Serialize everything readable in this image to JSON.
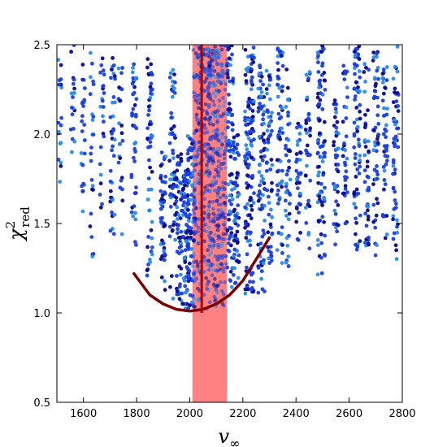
{
  "chart_data": {
    "type": "scatter",
    "title": "",
    "xlabel": "v",
    "xlabel_subscript": "∞",
    "ylabel": "χ",
    "ylabel_superscript": "2",
    "ylabel_subscript": "red",
    "xlim": [
      1500,
      2800
    ],
    "ylim": [
      0.5,
      2.5
    ],
    "xticks": [
      1600,
      1800,
      2000,
      2200,
      2400,
      2600,
      2800
    ],
    "yticks": [
      0.5,
      1.0,
      1.5,
      2.0,
      2.5
    ],
    "xtick_labels": [
      "1600",
      "1800",
      "2000",
      "2200",
      "2400",
      "2600",
      "2800"
    ],
    "ytick_labels": [
      "0.5",
      "1.0",
      "1.5",
      "2.0",
      "2.5"
    ],
    "grid": false,
    "legend": "none",
    "colors": {
      "point_dark": "#0a0a8c",
      "point_mid": "#1a3fe0",
      "point_light": "#2b8ae8",
      "band": "#ff7a7a",
      "curve": "#7a0000",
      "best_fit_line": "#b30000"
    },
    "highlight_band": {
      "x_range": [
        2010,
        2140
      ]
    },
    "best_fit_line": {
      "x": 2045,
      "y_range": [
        1.0,
        2.5
      ]
    },
    "fit_curve": {
      "x": [
        1790,
        1850,
        1900,
        1950,
        2000,
        2050,
        2100,
        2150,
        2200,
        2250,
        2300
      ],
      "y": [
        1.22,
        1.1,
        1.05,
        1.02,
        1.01,
        1.02,
        1.05,
        1.1,
        1.18,
        1.3,
        1.42
      ]
    },
    "columns": [
      {
        "x": 1510,
        "ymin": 1.6,
        "ymax": 2.5,
        "weight": 0.3
      },
      {
        "x": 1560,
        "ymin": 1.75,
        "ymax": 2.5,
        "weight": 0.3
      },
      {
        "x": 1600,
        "ymin": 1.55,
        "ymax": 2.4,
        "weight": 0.4
      },
      {
        "x": 1630,
        "ymin": 1.25,
        "ymax": 2.5,
        "weight": 0.4
      },
      {
        "x": 1670,
        "ymin": 1.5,
        "ymax": 2.5,
        "weight": 0.4
      },
      {
        "x": 1710,
        "ymin": 1.4,
        "ymax": 2.5,
        "weight": 0.6
      },
      {
        "x": 1740,
        "ymin": 1.4,
        "ymax": 2.4,
        "weight": 0.4
      },
      {
        "x": 1790,
        "ymin": 1.35,
        "ymax": 2.4,
        "weight": 0.7
      },
      {
        "x": 1850,
        "ymin": 1.2,
        "ymax": 2.5,
        "weight": 0.9
      },
      {
        "x": 1900,
        "ymin": 1.1,
        "ymax": 1.9,
        "weight": 0.8
      },
      {
        "x": 1935,
        "ymin": 1.05,
        "ymax": 2.4,
        "weight": 1.0
      },
      {
        "x": 1960,
        "ymin": 1.05,
        "ymax": 1.9,
        "weight": 1.0
      },
      {
        "x": 1985,
        "ymin": 1.02,
        "ymax": 1.8,
        "weight": 1.2
      },
      {
        "x": 2005,
        "ymin": 1.02,
        "ymax": 2.0,
        "weight": 1.5
      },
      {
        "x": 2030,
        "ymin": 1.02,
        "ymax": 2.5,
        "weight": 2.2
      },
      {
        "x": 2060,
        "ymin": 1.01,
        "ymax": 2.5,
        "weight": 2.5
      },
      {
        "x": 2090,
        "ymin": 1.02,
        "ymax": 2.5,
        "weight": 2.5
      },
      {
        "x": 2120,
        "ymin": 1.03,
        "ymax": 2.5,
        "weight": 2.2
      },
      {
        "x": 2150,
        "ymin": 1.1,
        "ymax": 2.5,
        "weight": 1.5
      },
      {
        "x": 2175,
        "ymin": 1.15,
        "ymax": 2.0,
        "weight": 1.0
      },
      {
        "x": 2225,
        "ymin": 1.05,
        "ymax": 2.5,
        "weight": 2.2
      },
      {
        "x": 2270,
        "ymin": 1.1,
        "ymax": 2.4,
        "weight": 1.4
      },
      {
        "x": 2300,
        "ymin": 1.2,
        "ymax": 2.4,
        "weight": 0.9
      },
      {
        "x": 2340,
        "ymin": 1.25,
        "ymax": 2.5,
        "weight": 1.0
      },
      {
        "x": 2370,
        "ymin": 1.2,
        "ymax": 2.4,
        "weight": 0.7
      },
      {
        "x": 2410,
        "ymin": 1.35,
        "ymax": 2.1,
        "weight": 0.6
      },
      {
        "x": 2445,
        "ymin": 1.3,
        "ymax": 2.4,
        "weight": 0.6
      },
      {
        "x": 2495,
        "ymin": 1.2,
        "ymax": 2.5,
        "weight": 1.6
      },
      {
        "x": 2550,
        "ymin": 1.35,
        "ymax": 2.2,
        "weight": 0.7
      },
      {
        "x": 2585,
        "ymin": 1.4,
        "ymax": 2.4,
        "weight": 0.6
      },
      {
        "x": 2630,
        "ymin": 1.3,
        "ymax": 2.5,
        "weight": 1.2
      },
      {
        "x": 2665,
        "ymin": 1.35,
        "ymax": 2.4,
        "weight": 0.7
      },
      {
        "x": 2700,
        "ymin": 1.25,
        "ymax": 2.5,
        "weight": 0.9
      },
      {
        "x": 2735,
        "ymin": 1.4,
        "ymax": 2.4,
        "weight": 0.7
      },
      {
        "x": 2775,
        "ymin": 1.3,
        "ymax": 2.5,
        "weight": 0.9
      }
    ]
  }
}
